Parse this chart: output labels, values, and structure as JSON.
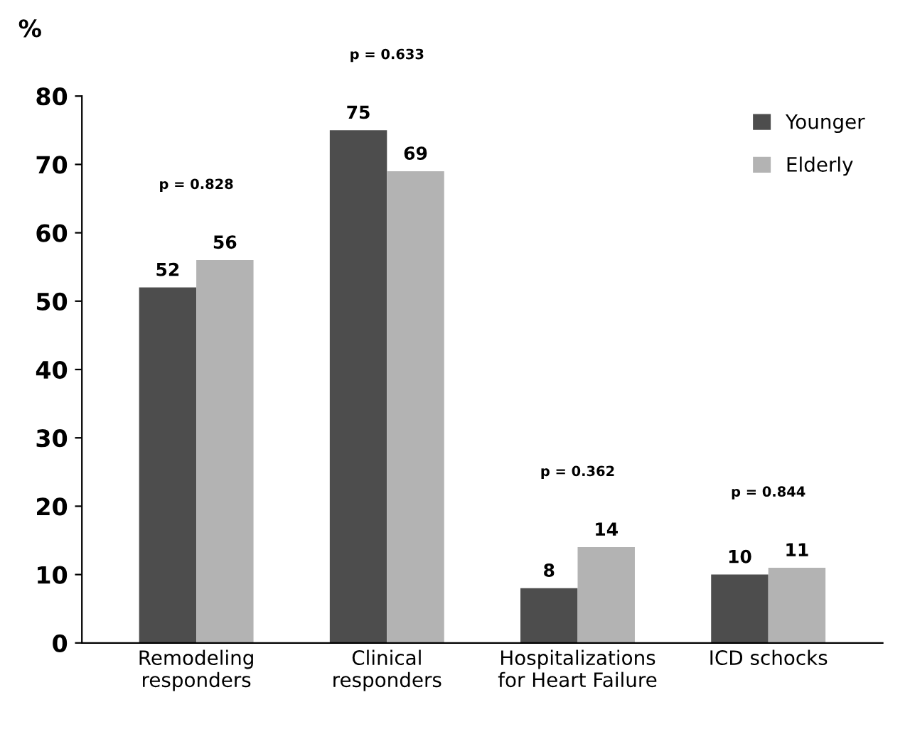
{
  "chart_data": {
    "type": "bar",
    "ylabel": "%",
    "categories": [
      "Remodeling\nresponders",
      "Clinical\nresponders",
      "Hospitalizations\nfor Heart Failure",
      "ICD schocks"
    ],
    "series": [
      {
        "name": "Younger",
        "color": "#4d4d4d",
        "values": [
          52,
          75,
          8,
          10
        ]
      },
      {
        "name": "Elderly",
        "color": "#b3b3b3",
        "values": [
          56,
          69,
          14,
          11
        ]
      }
    ],
    "data_labels": true,
    "ylim": [
      0,
      80
    ],
    "yticks": [
      0,
      10,
      20,
      30,
      40,
      50,
      60,
      70,
      80
    ],
    "grid": false,
    "legend": "top right",
    "annotations": [
      "p = 0.828",
      "p = 0.633",
      "p = 0.362",
      "p = 0.844"
    ]
  }
}
